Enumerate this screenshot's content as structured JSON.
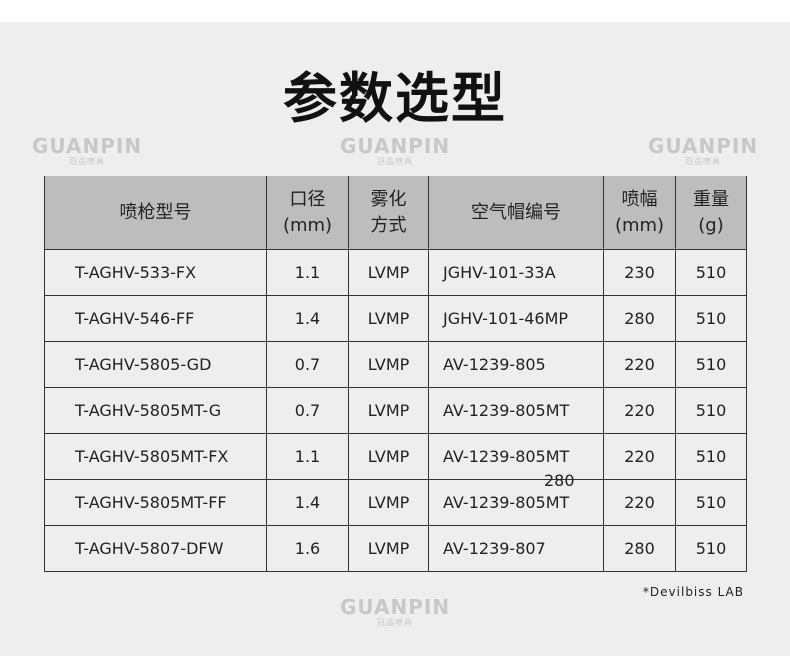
{
  "title": "参数选型",
  "watermark": {
    "brand": "GUANPIN",
    "sub": "冠品喷具"
  },
  "headers": [
    [
      "喷枪型号"
    ],
    [
      "口径",
      "(mm)"
    ],
    [
      "雾化",
      "方式"
    ],
    [
      "空气帽编号"
    ],
    [
      "喷幅",
      "(mm)"
    ],
    [
      "重量",
      "(g)"
    ]
  ],
  "rows": [
    [
      "T-AGHV-533-FX",
      "1.1",
      "LVMP",
      "JGHV-101-33A",
      "230",
      "510"
    ],
    [
      "T-AGHV-546-FF",
      "1.4",
      "LVMP",
      "JGHV-101-46MP",
      "280",
      "510"
    ],
    [
      "T-AGHV-5805-GD",
      "0.7",
      "LVMP",
      "AV-1239-805",
      "220",
      "510"
    ],
    [
      "T-AGHV-5805MT-G",
      "0.7",
      "LVMP",
      "AV-1239-805MT",
      "220",
      "510"
    ],
    [
      "T-AGHV-5805MT-FX",
      "1.1",
      "LVMP",
      "AV-1239-805MT",
      "220",
      "510"
    ],
    [
      "T-AGHV-5805MT-FF",
      "1.4",
      "LVMP",
      "AV-1239-805MT",
      "220",
      "510"
    ],
    [
      "T-AGHV-5807-DFW",
      "1.6",
      "LVMP",
      "AV-1239-807",
      "280",
      "510"
    ]
  ],
  "stray_value": "280",
  "footnote": "*Devilbiss LAB"
}
